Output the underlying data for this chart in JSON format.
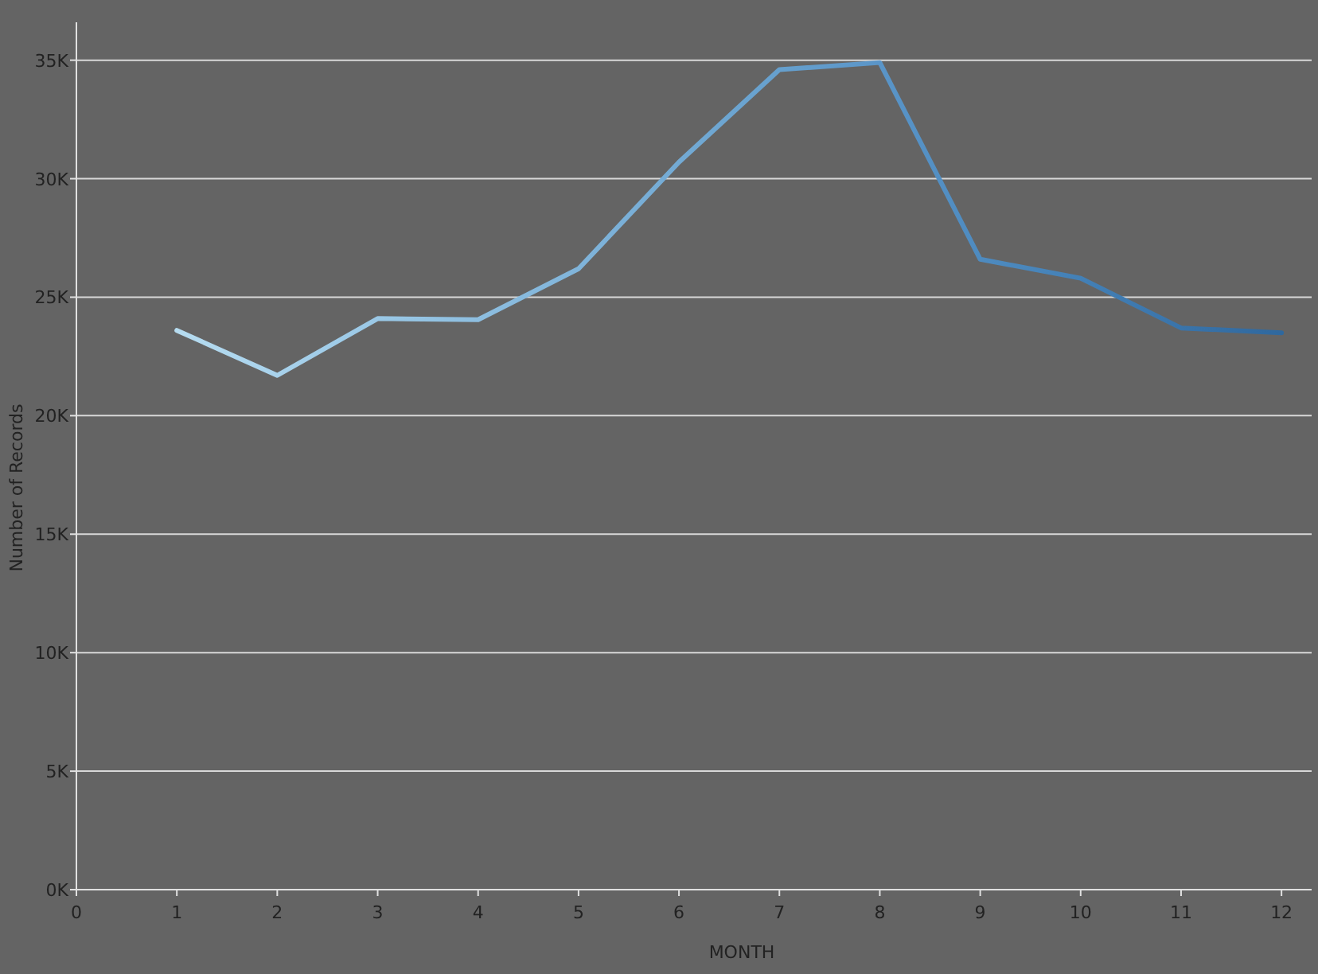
{
  "chart_data": {
    "type": "line",
    "xlabel": "MONTH",
    "ylabel": "Number of Records",
    "x": [
      1,
      2,
      3,
      4,
      5,
      6,
      7,
      8,
      9,
      10,
      11,
      12
    ],
    "series": [
      {
        "colors": [
          "#b6dcf0",
          "#a8d2ec",
          "#9ac8e6",
          "#8dbee0",
          "#80b4da",
          "#73aad4",
          "#66a0ce",
          "#5a95c8",
          "#4e8bc0",
          "#4380b6",
          "#3a74aa",
          "#2f689e"
        ],
        "values": [
          23600,
          21700,
          24100,
          24050,
          26200,
          30700,
          34600,
          34900,
          26600,
          25800,
          23700,
          23500
        ]
      }
    ],
    "xlim": [
      0,
      12.3
    ],
    "xticks": [
      0,
      1,
      2,
      3,
      4,
      5,
      6,
      7,
      8,
      9,
      10,
      11,
      12
    ],
    "ylim": [
      0,
      36600
    ],
    "yticks": [
      {
        "value": 0,
        "label": "0K"
      },
      {
        "value": 5000,
        "label": "5K"
      },
      {
        "value": 10000,
        "label": "10K"
      },
      {
        "value": 15000,
        "label": "15K"
      },
      {
        "value": 20000,
        "label": "20K"
      },
      {
        "value": 25000,
        "label": "25K"
      },
      {
        "value": 30000,
        "label": "30K"
      },
      {
        "value": 35000,
        "label": "35K"
      }
    ],
    "grid": "y",
    "marker": "none",
    "line_style": "solid"
  }
}
